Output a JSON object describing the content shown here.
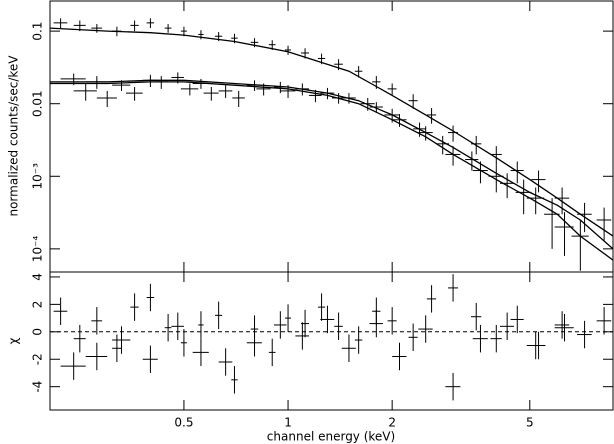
{
  "chart_data": [
    {
      "type": "scatter",
      "ylabel": "normalized counts/sec/keV",
      "log_x": true,
      "log_y": true,
      "xlim": [
        0.205,
        8.7
      ],
      "ylim": [
        4.8e-05,
        0.26
      ],
      "yticks": [
        0.1,
        0.01,
        {
          "value": 0.001,
          "label": "10⁻³"
        },
        {
          "value": 0.0001,
          "label": "10⁻⁴"
        }
      ],
      "color": "#000000",
      "series": [
        {
          "x": [
            0.22,
            0.25,
            0.28,
            0.32,
            0.36,
            0.4,
            0.45,
            0.5,
            0.56,
            0.63,
            0.7,
            0.8,
            0.9,
            1.0,
            1.12,
            1.25,
            1.4,
            1.6,
            1.8,
            2.0,
            2.3,
            2.6,
            3.0,
            3.5,
            4.0,
            4.6,
            5.3,
            6.2,
            7.2,
            8.2
          ],
          "values": [
            0.13,
            0.12,
            0.11,
            0.1,
            0.12,
            0.13,
            0.11,
            0.1,
            0.09,
            0.085,
            0.08,
            0.07,
            0.065,
            0.055,
            0.05,
            0.042,
            0.035,
            0.028,
            0.02,
            0.016,
            0.011,
            0.007,
            0.004,
            0.0028,
            0.002,
            0.0012,
            0.0009,
            0.0005,
            0.0003,
            0.00025
          ],
          "errors": [
            0.02,
            0.02,
            0.015,
            0.015,
            0.02,
            0.02,
            0.015,
            0.015,
            0.013,
            0.012,
            0.012,
            0.01,
            0.01,
            0.008,
            0.008,
            0.007,
            0.006,
            0.005,
            0.004,
            0.003,
            0.0025,
            0.0017,
            0.001,
            0.0008,
            0.0006,
            0.0004,
            0.0003,
            0.0002,
            0.00013,
            0.00012
          ],
          "x_errors": [
            0.01,
            0.01,
            0.01,
            0.01,
            0.01,
            0.01,
            0.01,
            0.01,
            0.01,
            0.015,
            0.015,
            0.02,
            0.02,
            0.02,
            0.03,
            0.03,
            0.04,
            0.04,
            0.05,
            0.06,
            0.07,
            0.08,
            0.1,
            0.12,
            0.15,
            0.2,
            0.25,
            0.3,
            0.35,
            0.4
          ]
        },
        {
          "x": [
            0.24,
            0.28,
            0.33,
            0.4,
            0.48,
            0.56,
            0.66,
            0.8,
            0.95,
            1.1,
            1.3,
            1.5,
            1.8,
            2.1,
            2.5,
            3.0,
            3.6,
            4.3,
            5.2,
            6.3
          ],
          "values": [
            0.022,
            0.02,
            0.018,
            0.021,
            0.023,
            0.019,
            0.015,
            0.018,
            0.017,
            0.016,
            0.014,
            0.012,
            0.009,
            0.006,
            0.004,
            0.002,
            0.0012,
            0.0008,
            0.0005,
            0.0002
          ],
          "errors": [
            0.004,
            0.004,
            0.003,
            0.004,
            0.004,
            0.003,
            0.003,
            0.003,
            0.003,
            0.003,
            0.0025,
            0.002,
            0.0015,
            0.0012,
            0.0009,
            0.0006,
            0.0004,
            0.0003,
            0.0002,
            0.00012
          ],
          "x_errors": [
            0.02,
            0.02,
            0.02,
            0.02,
            0.02,
            0.03,
            0.03,
            0.04,
            0.04,
            0.05,
            0.06,
            0.07,
            0.08,
            0.1,
            0.12,
            0.15,
            0.18,
            0.2,
            0.3,
            0.4
          ]
        },
        {
          "x": [
            0.26,
            0.3,
            0.36,
            0.43,
            0.52,
            0.6,
            0.72,
            0.85,
            1.0,
            1.2,
            1.4,
            1.7,
            2.0,
            2.4,
            2.8,
            3.4,
            4.0,
            4.8,
            5.8,
            7.0
          ],
          "values": [
            0.015,
            0.012,
            0.014,
            0.02,
            0.016,
            0.014,
            0.012,
            0.016,
            0.015,
            0.013,
            0.012,
            0.01,
            0.007,
            0.0045,
            0.0028,
            0.0017,
            0.001,
            0.0006,
            0.0003,
            0.00015
          ],
          "errors": [
            0.004,
            0.003,
            0.003,
            0.004,
            0.003,
            0.003,
            0.003,
            0.003,
            0.003,
            0.0025,
            0.002,
            0.002,
            0.0015,
            0.001,
            0.0008,
            0.0005,
            0.0004,
            0.0003,
            0.0002,
            0.0001
          ],
          "x_errors": [
            0.02,
            0.02,
            0.02,
            0.02,
            0.03,
            0.03,
            0.03,
            0.04,
            0.05,
            0.05,
            0.06,
            0.08,
            0.1,
            0.1,
            0.12,
            0.15,
            0.2,
            0.25,
            0.3,
            0.4
          ]
        }
      ],
      "models": [
        {
          "x": [
            0.205,
            0.3,
            0.4,
            0.5,
            0.7,
            1.0,
            1.5,
            2.0,
            2.5,
            3,
            4,
            5,
            6,
            7,
            8.7
          ],
          "values": [
            0.11,
            0.1,
            0.095,
            0.088,
            0.072,
            0.052,
            0.028,
            0.013,
            0.007,
            0.0042,
            0.0018,
            0.0009,
            0.0005,
            0.0003,
            0.00015
          ]
        },
        {
          "x": [
            0.205,
            0.3,
            0.4,
            0.5,
            0.7,
            1.0,
            1.3,
            1.6,
            2.0,
            2.5,
            3,
            4,
            5,
            6,
            7,
            8.7
          ],
          "values": [
            0.02,
            0.02,
            0.021,
            0.021,
            0.019,
            0.017,
            0.014,
            0.011,
            0.007,
            0.004,
            0.0025,
            0.0011,
            0.0006,
            0.0004,
            0.00025,
            0.0001
          ]
        },
        {
          "x": [
            0.205,
            0.3,
            0.4,
            0.5,
            0.7,
            1.0,
            1.3,
            1.6,
            2.0,
            2.5,
            3,
            4,
            5,
            6,
            7,
            8.7
          ],
          "values": [
            0.019,
            0.019,
            0.02,
            0.02,
            0.018,
            0.016,
            0.013,
            0.01,
            0.006,
            0.0035,
            0.002,
            0.0009,
            0.0005,
            0.0003,
            0.00015,
            7e-05
          ]
        }
      ]
    },
    {
      "type": "scatter",
      "ylabel": "χ",
      "xlabel": "channel energy (keV)",
      "log_x": true,
      "xlim": [
        0.205,
        8.7
      ],
      "ylim": [
        -5.7,
        4.36
      ],
      "xticks": [
        0.5,
        1,
        2,
        5
      ],
      "yticks": [
        4,
        2,
        0,
        -2,
        -4
      ],
      "reference_line": 0,
      "color": "#000000",
      "series": [
        {
          "x": [
            0.22,
            0.25,
            0.28,
            0.32,
            0.36,
            0.4,
            0.45,
            0.5,
            0.56,
            0.63,
            0.7,
            0.8,
            0.9,
            1.0,
            1.12,
            1.25,
            1.4,
            1.6,
            1.8,
            2.0,
            2.3,
            2.6,
            3.0,
            3.5,
            4.0,
            4.6,
            5.3,
            6.2,
            7.2,
            8.2
          ],
          "values": [
            1.5,
            -0.5,
            0.8,
            -1.2,
            1.8,
            2.5,
            0.3,
            -0.8,
            0.5,
            1.2,
            -3.5,
            0.2,
            -1.5,
            1.0,
            0.6,
            1.8,
            0.4,
            -0.6,
            1.5,
            0.8,
            -0.4,
            2.4,
            3.2,
            1.1,
            -0.5,
            0.9,
            -1.0,
            0.5,
            -0.2,
            0.8
          ],
          "errors": [
            1,
            1,
            1,
            1,
            1,
            1,
            1,
            1,
            1,
            1,
            1,
            1,
            1,
            1,
            1,
            1,
            1,
            1,
            1,
            1,
            1,
            1,
            1,
            1,
            1,
            1,
            1,
            1,
            1,
            1
          ],
          "x_errors": [
            0.01,
            0.01,
            0.01,
            0.01,
            0.01,
            0.01,
            0.01,
            0.01,
            0.01,
            0.015,
            0.015,
            0.02,
            0.02,
            0.02,
            0.03,
            0.03,
            0.04,
            0.04,
            0.05,
            0.06,
            0.07,
            0.08,
            0.1,
            0.12,
            0.15,
            0.2,
            0.25,
            0.3,
            0.35,
            0.4
          ]
        },
        {
          "x": [
            0.24,
            0.28,
            0.33,
            0.4,
            0.48,
            0.56,
            0.66,
            0.8,
            0.95,
            1.1,
            1.3,
            1.5,
            1.8,
            2.1,
            2.5,
            3.0,
            3.6,
            4.3,
            5.2,
            6.3
          ],
          "values": [
            -2.5,
            -1.8,
            -0.6,
            -2.0,
            0.4,
            -1.5,
            -2.2,
            -0.8,
            0.5,
            -0.3,
            0.9,
            -1.2,
            0.6,
            -1.8,
            0.2,
            -4.0,
            -0.5,
            0.4,
            -1.0,
            0.3
          ],
          "errors": [
            1,
            1,
            1,
            1,
            1,
            1,
            1,
            1,
            1,
            1,
            1,
            1,
            1,
            1,
            1,
            1,
            1,
            1,
            1,
            1
          ],
          "x_errors": [
            0.02,
            0.02,
            0.02,
            0.02,
            0.02,
            0.03,
            0.03,
            0.04,
            0.04,
            0.05,
            0.06,
            0.07,
            0.08,
            0.1,
            0.12,
            0.15,
            0.18,
            0.2,
            0.3,
            0.4
          ]
        }
      ]
    }
  ]
}
